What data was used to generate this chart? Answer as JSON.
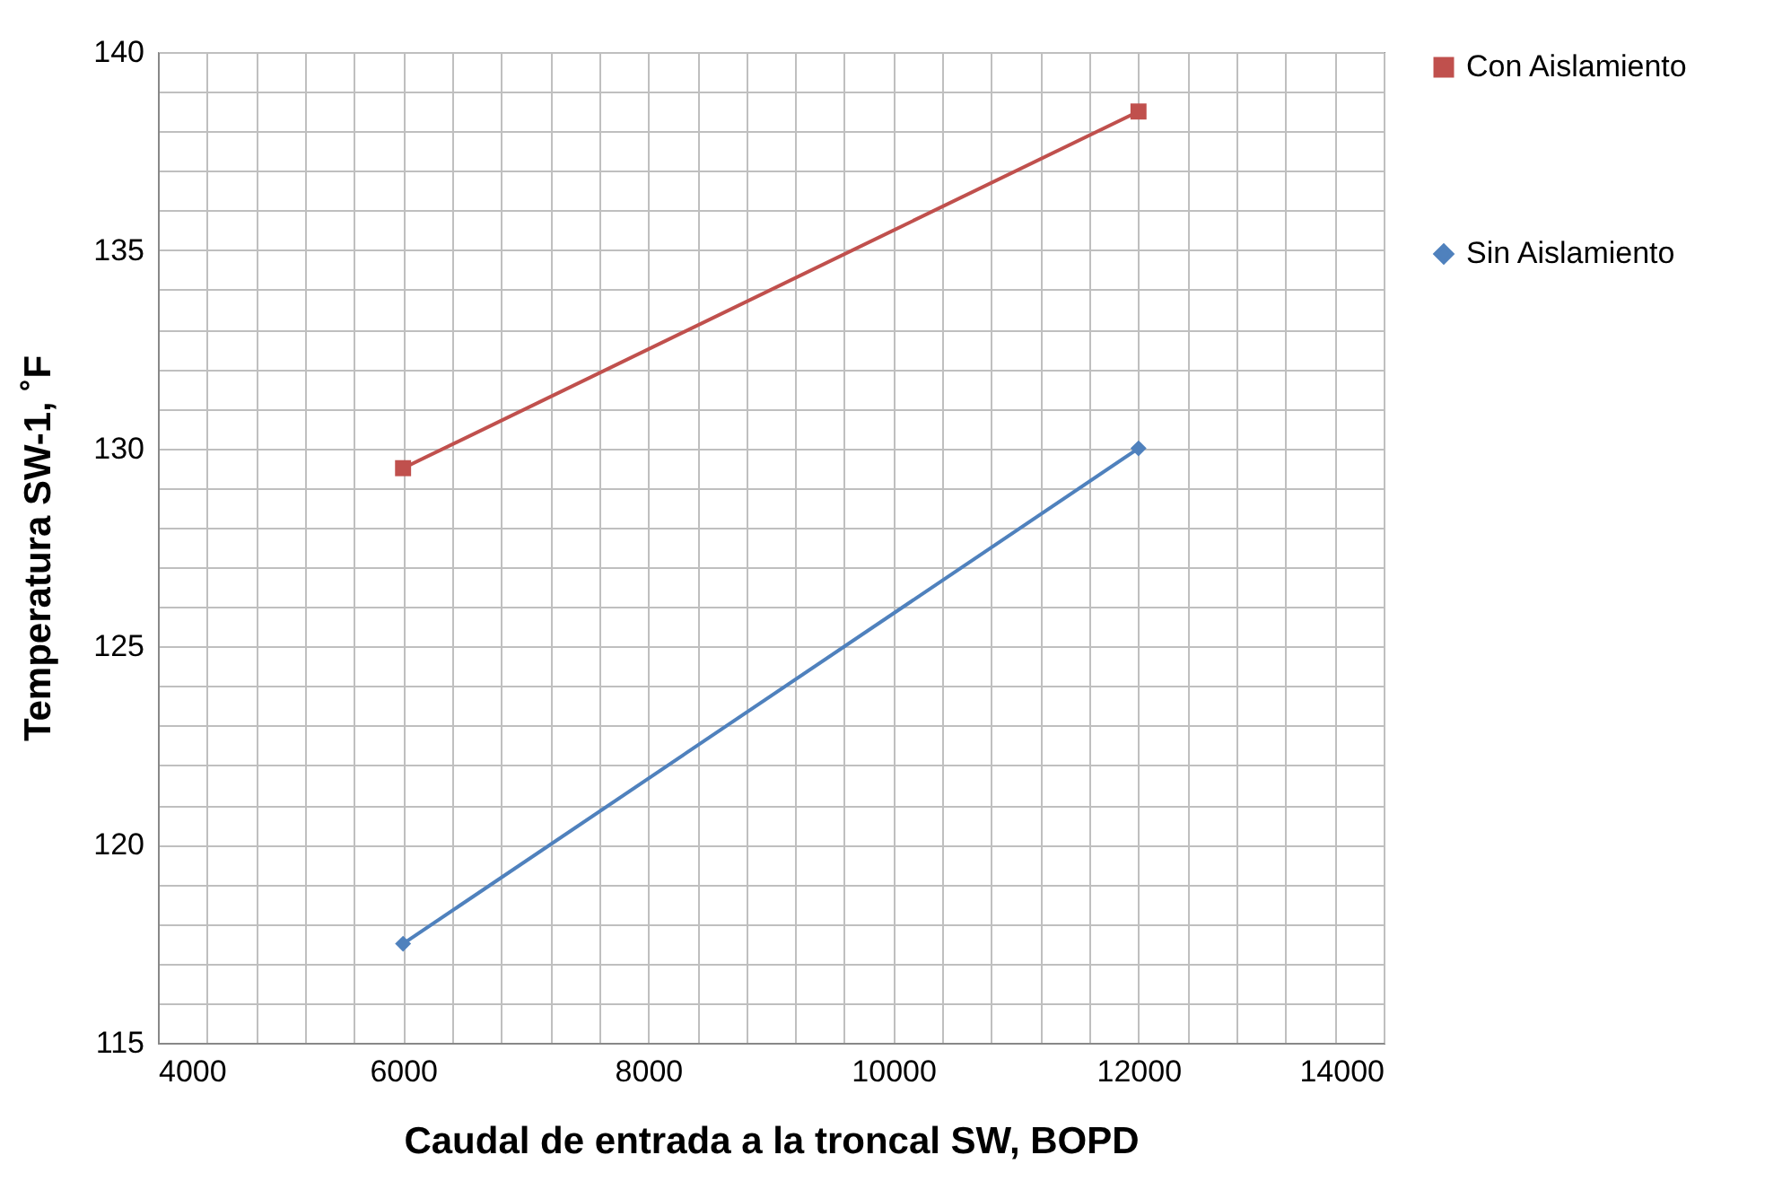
{
  "chart_data": {
    "type": "line",
    "xlabel": "Caudal de entrada a la troncal SW, BOPD",
    "ylabel": "Temperatura SW-1, ˚F",
    "x": [
      6000,
      12000
    ],
    "series": [
      {
        "name": "Con Aislamiento",
        "color": "#c0504d",
        "marker": "square",
        "values": [
          129.5,
          138.5
        ]
      },
      {
        "name": "Sin Aislamiento",
        "color": "#4f81bd",
        "marker": "diamond",
        "values": [
          117.5,
          130
        ]
      }
    ],
    "xlim": [
      4000,
      14000
    ],
    "xticks": [
      4000,
      {
        "value": 4400,
        "label": null
      },
      {
        "value": 4800,
        "label": null
      },
      {
        "value": 5200,
        "label": null
      },
      {
        "value": 5600,
        "label": null
      },
      6000,
      {
        "value": 6400,
        "label": null
      },
      {
        "value": 6800,
        "label": null
      },
      {
        "value": 7200,
        "label": null
      },
      {
        "value": 7600,
        "label": null
      },
      8000,
      {
        "value": 8400,
        "label": null
      },
      {
        "value": 8800,
        "label": null
      },
      {
        "value": 9200,
        "label": null
      },
      {
        "value": 9600,
        "label": null
      },
      10000,
      {
        "value": 10400,
        "label": null
      },
      {
        "value": 10800,
        "label": null
      },
      {
        "value": 11200,
        "label": null
      },
      {
        "value": 11600,
        "label": null
      },
      12000,
      {
        "value": 12400,
        "label": null
      },
      {
        "value": 12800,
        "label": null
      },
      {
        "value": 13200,
        "label": null
      },
      {
        "value": 13600,
        "label": null
      },
      14000
    ],
    "ylim": [
      115,
      140
    ],
    "yticks": [
      115,
      {
        "value": 116,
        "label": null
      },
      {
        "value": 117,
        "label": null
      },
      {
        "value": 118,
        "label": null
      },
      {
        "value": 119,
        "label": null
      },
      120,
      {
        "value": 121,
        "label": null
      },
      {
        "value": 122,
        "label": null
      },
      {
        "value": 123,
        "label": null
      },
      {
        "value": 124,
        "label": null
      },
      125,
      {
        "value": 126,
        "label": null
      },
      {
        "value": 127,
        "label": null
      },
      {
        "value": 128,
        "label": null
      },
      {
        "value": 129,
        "label": null
      },
      130,
      {
        "value": 131,
        "label": null
      },
      {
        "value": 132,
        "label": null
      },
      {
        "value": 133,
        "label": null
      },
      {
        "value": 134,
        "label": null
      },
      135,
      {
        "value": 136,
        "label": null
      },
      {
        "value": 137,
        "label": null
      },
      {
        "value": 138,
        "label": null
      },
      {
        "value": 139,
        "label": null
      },
      140
    ],
    "grid": true,
    "legend": "right",
    "line_style": "solid"
  }
}
